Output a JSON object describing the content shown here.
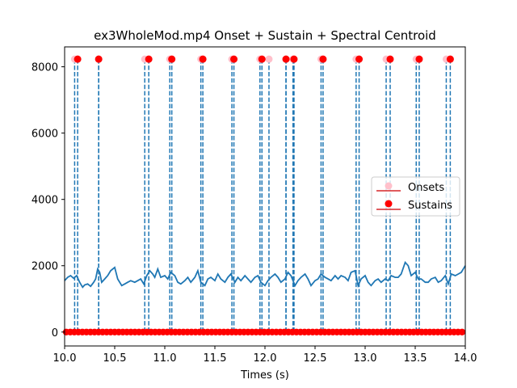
{
  "chart_data": {
    "type": "line",
    "title": "ex3WholeMod.mp4 Onset + Sustain + Spectral Centroid",
    "xlabel": "Times (s)",
    "ylabel": "",
    "xlim": [
      10.0,
      14.0
    ],
    "ylim": [
      -420,
      8600
    ],
    "xticks": [
      10.0,
      10.5,
      11.0,
      11.5,
      12.0,
      12.5,
      13.0,
      13.5,
      14.0
    ],
    "xtick_labels": [
      "10.0",
      "10.5",
      "11.0",
      "11.5",
      "12.0",
      "12.5",
      "13.0",
      "13.5",
      "14.0"
    ],
    "yticks": [
      0,
      2000,
      4000,
      6000,
      8000
    ],
    "ytick_labels": [
      "0",
      "2000",
      "4000",
      "6000",
      "8000"
    ],
    "grid": false,
    "legend": {
      "placement": "center-right",
      "entries": [
        {
          "label": "Onsets",
          "color": "#ffc0cb",
          "line_color": "#d62728"
        },
        {
          "label": "Sustains",
          "color": "#ff0000",
          "line_color": "#d62728"
        }
      ]
    },
    "marker_y": 8230,
    "baseline_y": 0,
    "baseline_color": "#ff0000",
    "vline_color": "#1f77b4",
    "centroid_color": "#1f77b4",
    "onsets": [
      10.1,
      10.34,
      10.8,
      11.05,
      11.36,
      11.67,
      11.95,
      12.04,
      12.21,
      12.28,
      12.56,
      12.91,
      13.21,
      13.51,
      13.81
    ],
    "sustains": [
      10.13,
      10.34,
      10.84,
      11.07,
      11.38,
      11.69,
      11.97,
      12.21,
      12.29,
      12.58,
      12.94,
      13.25,
      13.54,
      13.85
    ],
    "spectral_centroid": {
      "x": [
        10.0,
        10.03,
        10.06,
        10.09,
        10.12,
        10.15,
        10.18,
        10.2,
        10.23,
        10.26,
        10.29,
        10.31,
        10.33,
        10.35,
        10.37,
        10.4,
        10.43,
        10.46,
        10.5,
        10.53,
        10.57,
        10.6,
        10.63,
        10.66,
        10.7,
        10.73,
        10.76,
        10.79,
        10.82,
        10.85,
        10.88,
        10.9,
        10.93,
        10.96,
        11.0,
        11.03,
        11.06,
        11.1,
        11.13,
        11.16,
        11.2,
        11.23,
        11.26,
        11.3,
        11.33,
        11.36,
        11.4,
        11.43,
        11.46,
        11.5,
        11.53,
        11.56,
        11.6,
        11.63,
        11.66,
        11.7,
        11.73,
        11.76,
        11.8,
        11.83,
        11.86,
        11.9,
        11.93,
        11.96,
        12.0,
        12.03,
        12.06,
        12.1,
        12.13,
        12.16,
        12.2,
        12.23,
        12.26,
        12.3,
        12.33,
        12.36,
        12.4,
        12.43,
        12.46,
        12.5,
        12.53,
        12.56,
        12.6,
        12.63,
        12.66,
        12.7,
        12.73,
        12.76,
        12.8,
        12.83,
        12.86,
        12.9,
        12.93,
        12.96,
        13.0,
        13.03,
        13.06,
        13.1,
        13.13,
        13.16,
        13.2,
        13.23,
        13.26,
        13.3,
        13.33,
        13.36,
        13.4,
        13.43,
        13.46,
        13.5,
        13.53,
        13.56,
        13.6,
        13.63,
        13.66,
        13.7,
        13.73,
        13.76,
        13.8,
        13.83,
        13.86,
        13.9,
        13.93,
        13.96,
        14.0
      ],
      "y": [
        1550,
        1650,
        1700,
        1620,
        1700,
        1500,
        1350,
        1420,
        1450,
        1380,
        1500,
        1600,
        1900,
        1800,
        1500,
        1600,
        1700,
        1850,
        1950,
        1600,
        1400,
        1450,
        1500,
        1550,
        1500,
        1550,
        1600,
        1450,
        1700,
        1850,
        1750,
        1650,
        1900,
        1650,
        1700,
        1600,
        1800,
        1700,
        1500,
        1450,
        1550,
        1650,
        1500,
        1650,
        1850,
        1500,
        1400,
        1600,
        1650,
        1550,
        1750,
        1600,
        1500,
        1650,
        1750,
        1500,
        1650,
        1550,
        1700,
        1600,
        1500,
        1650,
        1700,
        1500,
        1400,
        1550,
        1650,
        1750,
        1650,
        1500,
        1600,
        1800,
        1700,
        1400,
        1550,
        1650,
        1750,
        1600,
        1400,
        1550,
        1600,
        1750,
        1650,
        1600,
        1550,
        1700,
        1600,
        1700,
        1650,
        1550,
        1800,
        1850,
        1400,
        1600,
        1700,
        1500,
        1400,
        1550,
        1600,
        1500,
        1600,
        1550,
        1700,
        1650,
        1650,
        1750,
        2100,
        2000,
        1700,
        1800,
        1600,
        1600,
        1500,
        1500,
        1600,
        1650,
        1500,
        1550,
        1700,
        1450,
        1750,
        1700,
        1750,
        1800,
        2000
      ]
    }
  }
}
